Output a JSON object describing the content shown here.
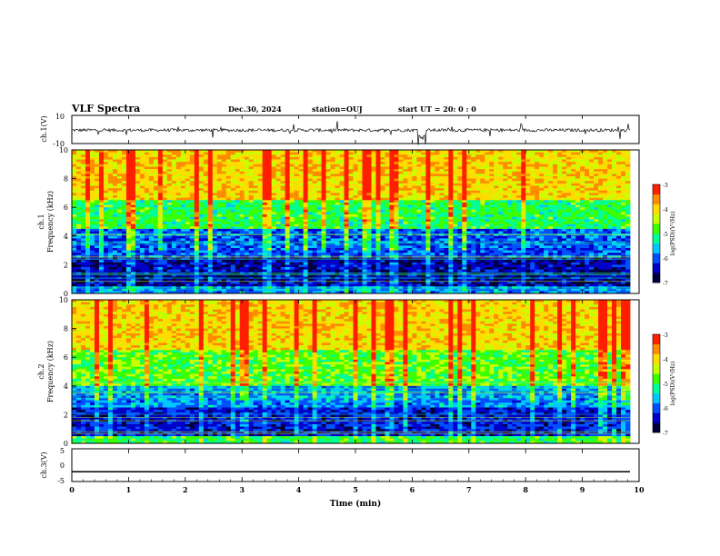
{
  "header": {
    "title": "VLF Spectra",
    "date": "Dec.30, 2024",
    "station": "station=OUJ",
    "start": "start  UT =  20: 0  : 0"
  },
  "colors": {
    "colormap": [
      "#00003c",
      "#0000c8",
      "#0050ff",
      "#00c8ff",
      "#00ff96",
      "#3cff00",
      "#c8ff00",
      "#ffdc00",
      "#ff8c00",
      "#ff1e00"
    ],
    "waveform": "#000000",
    "axes": "#000000"
  },
  "chart_data": [
    {
      "type": "line",
      "name": "waveform-ch1",
      "ylabel": "ch.1(V)",
      "ylim": [
        -10,
        10
      ],
      "yticks": [
        "10",
        "-10"
      ],
      "xlim": [
        0,
        10
      ],
      "baseline": 0,
      "note": "noisy waveform around 0 V with occasional spikes"
    },
    {
      "type": "heatmap",
      "name": "spectrogram-ch1",
      "ylabel": "ch.1\nFrequency (kHz)",
      "ylim": [
        0,
        10
      ],
      "yticks": [
        "0",
        "2",
        "4",
        "6",
        "8",
        "10"
      ],
      "xlim": [
        0,
        9.85
      ],
      "colorbar": {
        "label": "log(PSD)(V²/Hz)",
        "range": [
          -7,
          -3
        ],
        "ticks": [
          "-3",
          "-4",
          "-5",
          "-6",
          "-7"
        ]
      },
      "bands_khz": [
        {
          "from": 0,
          "to": 0.5,
          "level": -5.8
        },
        {
          "from": 0.5,
          "to": 2.5,
          "level": -6.5
        },
        {
          "from": 2.5,
          "to": 4.5,
          "level": -6.0
        },
        {
          "from": 4.5,
          "to": 6.5,
          "level": -5.0
        },
        {
          "from": 6.5,
          "to": 10,
          "level": -4.0
        }
      ]
    },
    {
      "type": "heatmap",
      "name": "spectrogram-ch2",
      "ylabel": "ch.2\nFrequency (kHz)",
      "ylim": [
        0,
        10
      ],
      "yticks": [
        "0",
        "2",
        "4",
        "6",
        "8",
        "10"
      ],
      "xlim": [
        0,
        9.85
      ],
      "colorbar": {
        "label": "log(PSD)(V²/Hz)",
        "range": [
          -7,
          -3
        ],
        "ticks": [
          "-3",
          "-4",
          "-5",
          "-6",
          "-7"
        ]
      },
      "bands_khz": [
        {
          "from": 0,
          "to": 0.5,
          "level": -5.0
        },
        {
          "from": 0.5,
          "to": 2.5,
          "level": -6.3
        },
        {
          "from": 2.5,
          "to": 4.0,
          "level": -5.8
        },
        {
          "from": 4.0,
          "to": 6.5,
          "level": -4.8
        },
        {
          "from": 6.5,
          "to": 10,
          "level": -4.0
        }
      ]
    },
    {
      "type": "line",
      "name": "waveform-ch3",
      "ylabel": "ch.3(V)",
      "ylim": [
        -5,
        5
      ],
      "yticks": [
        "5",
        "0",
        "-5"
      ],
      "xlim": [
        0,
        10
      ],
      "values_flat": -2,
      "xlabel": "Time (min)",
      "xticks": [
        "0",
        "1",
        "2",
        "3",
        "4",
        "5",
        "6",
        "7",
        "8",
        "9",
        "10"
      ]
    }
  ]
}
